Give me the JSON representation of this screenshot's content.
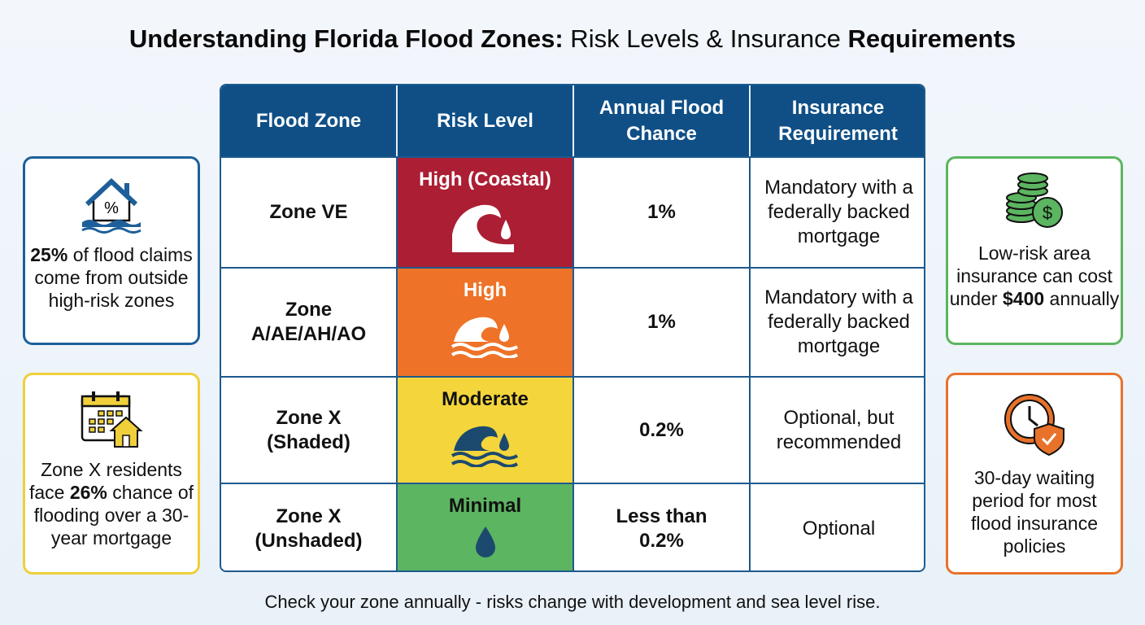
{
  "title": {
    "part1": "Understanding Florida Flood Zones:",
    "part2": " Risk Levels & Insurance ",
    "part3": "Requirements"
  },
  "table": {
    "headers": [
      "Flood Zone",
      "Risk Level",
      "Annual Flood Chance",
      "Insurance Requirement"
    ],
    "rows": [
      {
        "zone": "Zone VE",
        "risk": "High (Coastal)",
        "risk_color": "#ab1e34",
        "text_color": "#ffffff",
        "icon": "wave-drop-icon",
        "chance": "1%",
        "insurance": "Mandatory with a federally backed mortgage"
      },
      {
        "zone": "Zone A/AE/AH/AO",
        "risk": "High",
        "risk_color": "#ee7328",
        "text_color": "#ffffff",
        "icon": "wave-drop-icon",
        "chance": "1%",
        "insurance": "Mandatory with a federally backed mortgage"
      },
      {
        "zone": "Zone X (Shaded)",
        "risk": "Moderate",
        "risk_color": "#f4d53c",
        "text_color": "#111111",
        "icon": "wave-drop-icon",
        "chance": "0.2%",
        "insurance": "Optional, but recommended"
      },
      {
        "zone": "Zone X (Unshaded)",
        "risk": "Minimal",
        "risk_color": "#5cb560",
        "text_color": "#111111",
        "icon": "drop-icon",
        "chance": "Less than 0.2%",
        "insurance": "Optional"
      }
    ]
  },
  "cards": {
    "left1": {
      "icon": "flooded-house-percent-icon",
      "bold": "25%",
      "text": " of flood claims come from outside high-risk zones",
      "color": "#1d5f9a"
    },
    "left2": {
      "icon": "calendar-house-icon",
      "pre": "Zone X residents face ",
      "bold": "26%",
      "text": " chance of flooding over a 30-year mortgage",
      "color": "#f0cf3a"
    },
    "right1": {
      "icon": "coins-dollar-icon",
      "pre": "Low-risk area insurance can cost under ",
      "bold": "$400",
      "text": " annually",
      "color": "#5cb560"
    },
    "right2": {
      "icon": "clock-shield-icon",
      "text": "30-day waiting period for most flood insurance policies",
      "color": "#e8722a"
    }
  },
  "footer": "Check your zone annually - risks change with development and sea level rise."
}
